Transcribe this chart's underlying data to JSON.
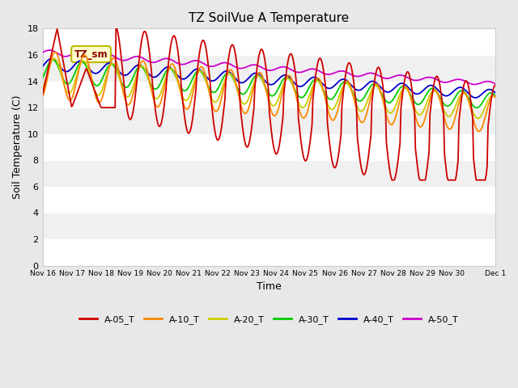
{
  "title": "TZ SoilVue A Temperature",
  "xlabel": "Time",
  "ylabel": "Soil Temperature (C)",
  "ylim": [
    0,
    18
  ],
  "yticks": [
    0,
    2,
    4,
    6,
    8,
    10,
    12,
    14,
    16,
    18
  ],
  "x_tick_positions": [
    0,
    1,
    2,
    3,
    4,
    5,
    6,
    7,
    8,
    9,
    10,
    11,
    12,
    13,
    14,
    15,
    15.5
  ],
  "x_tick_labels": [
    "Nov 16",
    "Nov 17",
    "Nov 18",
    "Nov 19",
    "Nov 20",
    "Nov 21",
    "Nov 22",
    "Nov 23",
    "Nov 24",
    "Nov 25",
    "Nov 26",
    "Nov 27",
    "Nov 28",
    "Nov 29",
    "Nov 30",
    "",
    "Dec 1"
  ],
  "colors": {
    "A-05_T": "#cc0000",
    "A-10_T": "#ff8800",
    "A-20_T": "#cccc00",
    "A-30_T": "#00cc00",
    "A-40_T": "#0000cc",
    "A-50_T": "#cc00cc"
  },
  "legend_labels": [
    "A-05_T",
    "A-10_T",
    "A-20_T",
    "A-30_T",
    "A-40_T",
    "A-50_T"
  ],
  "annotation_label": "TZ_sm",
  "bg_color": "#e8e8e8",
  "plot_bg_color": "#f0f0f0"
}
